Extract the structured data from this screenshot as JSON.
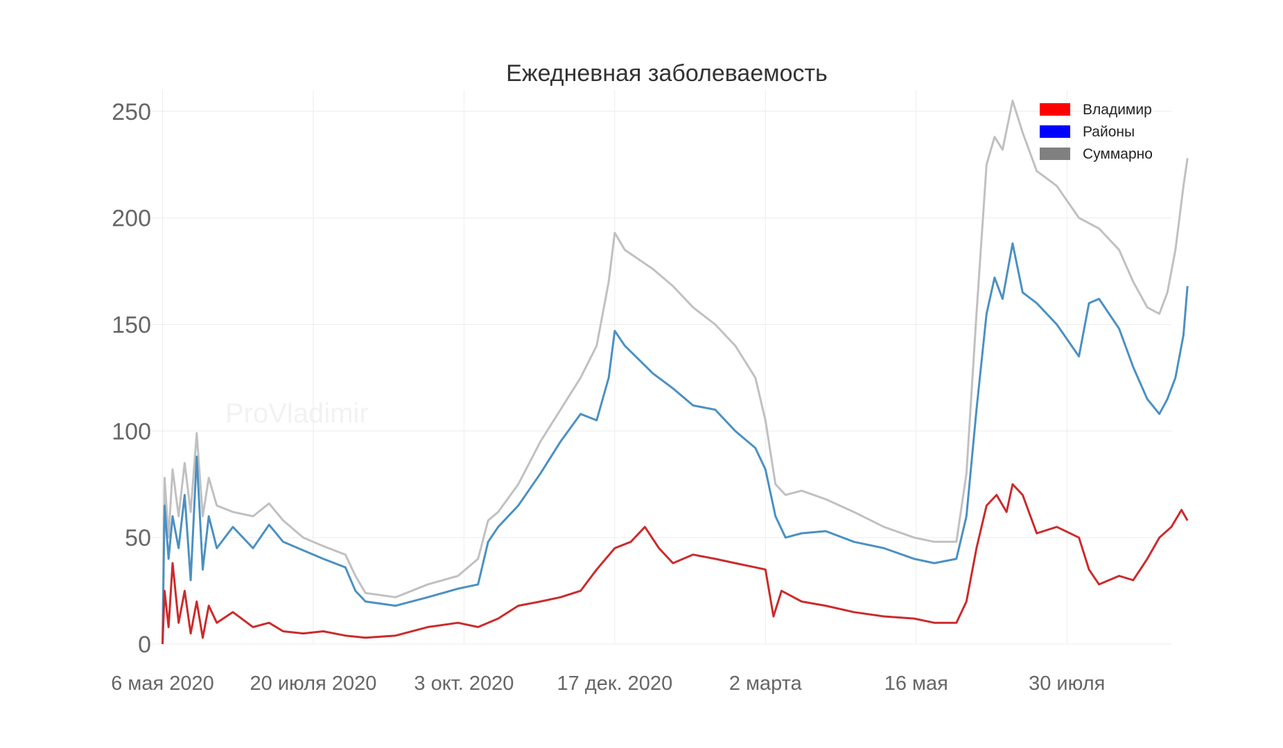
{
  "chart_data": {
    "type": "line",
    "title": "Ежедневная заболеваемость",
    "watermark": "ProVladimir",
    "xlabel": "",
    "ylabel": "",
    "ylim": [
      0,
      260
    ],
    "yticks": [
      0,
      50,
      100,
      150,
      200,
      250
    ],
    "xlim": [
      "2020-05-01",
      "2021-09-20"
    ],
    "xticks": [
      {
        "date": "2020-05-06",
        "label": "6 мая 2020"
      },
      {
        "date": "2020-07-20",
        "label": "20 июля 2020"
      },
      {
        "date": "2020-10-03",
        "label": "3 окт. 2020"
      },
      {
        "date": "2020-12-17",
        "label": "17 дек. 2020"
      },
      {
        "date": "2021-03-02",
        "label": "2 марта"
      },
      {
        "date": "2021-05-16",
        "label": "16 мая"
      },
      {
        "date": "2021-07-30",
        "label": "30 июля"
      }
    ],
    "grid": true,
    "legend_position": "top-right",
    "legend": [
      {
        "name": "Владимир",
        "color": "#ff0000"
      },
      {
        "name": "Районы",
        "color": "#0000ff"
      },
      {
        "name": "Суммарно",
        "color": "#808080"
      }
    ],
    "series": [
      {
        "name": "Суммарно",
        "color": "#c0c0c0",
        "points": [
          [
            "2020-05-06",
            0
          ],
          [
            "2020-05-07",
            78
          ],
          [
            "2020-05-09",
            50
          ],
          [
            "2020-05-11",
            82
          ],
          [
            "2020-05-14",
            60
          ],
          [
            "2020-05-17",
            85
          ],
          [
            "2020-05-20",
            62
          ],
          [
            "2020-05-23",
            99
          ],
          [
            "2020-05-26",
            60
          ],
          [
            "2020-05-29",
            78
          ],
          [
            "2020-06-02",
            65
          ],
          [
            "2020-06-10",
            62
          ],
          [
            "2020-06-20",
            60
          ],
          [
            "2020-06-28",
            66
          ],
          [
            "2020-07-05",
            58
          ],
          [
            "2020-07-15",
            50
          ],
          [
            "2020-07-25",
            46
          ],
          [
            "2020-08-05",
            42
          ],
          [
            "2020-08-10",
            32
          ],
          [
            "2020-08-15",
            24
          ],
          [
            "2020-08-30",
            22
          ],
          [
            "2020-09-15",
            28
          ],
          [
            "2020-09-30",
            32
          ],
          [
            "2020-10-10",
            40
          ],
          [
            "2020-10-15",
            58
          ],
          [
            "2020-10-20",
            62
          ],
          [
            "2020-10-30",
            75
          ],
          [
            "2020-11-10",
            95
          ],
          [
            "2020-11-20",
            110
          ],
          [
            "2020-11-30",
            125
          ],
          [
            "2020-12-08",
            140
          ],
          [
            "2020-12-14",
            170
          ],
          [
            "2020-12-17",
            193
          ],
          [
            "2020-12-22",
            185
          ],
          [
            "2021-01-05",
            176
          ],
          [
            "2021-01-15",
            168
          ],
          [
            "2021-01-25",
            158
          ],
          [
            "2021-02-05",
            150
          ],
          [
            "2021-02-15",
            140
          ],
          [
            "2021-02-25",
            125
          ],
          [
            "2021-03-02",
            105
          ],
          [
            "2021-03-07",
            75
          ],
          [
            "2021-03-12",
            70
          ],
          [
            "2021-03-20",
            72
          ],
          [
            "2021-04-01",
            68
          ],
          [
            "2021-04-15",
            62
          ],
          [
            "2021-04-30",
            55
          ],
          [
            "2021-05-15",
            50
          ],
          [
            "2021-05-25",
            48
          ],
          [
            "2021-06-05",
            48
          ],
          [
            "2021-06-10",
            80
          ],
          [
            "2021-06-15",
            155
          ],
          [
            "2021-06-20",
            225
          ],
          [
            "2021-06-24",
            238
          ],
          [
            "2021-06-28",
            232
          ],
          [
            "2021-07-03",
            255
          ],
          [
            "2021-07-08",
            240
          ],
          [
            "2021-07-15",
            222
          ],
          [
            "2021-07-25",
            215
          ],
          [
            "2021-08-05",
            200
          ],
          [
            "2021-08-15",
            195
          ],
          [
            "2021-08-25",
            185
          ],
          [
            "2021-09-01",
            170
          ],
          [
            "2021-09-08",
            158
          ],
          [
            "2021-09-14",
            155
          ],
          [
            "2021-09-18",
            165
          ],
          [
            "2021-09-22",
            185
          ],
          [
            "2021-09-26",
            215
          ],
          [
            "2021-09-28",
            228
          ]
        ]
      },
      {
        "name": "Районы",
        "color": "#4a90c2",
        "points": [
          [
            "2020-05-06",
            0
          ],
          [
            "2020-05-07",
            65
          ],
          [
            "2020-05-09",
            40
          ],
          [
            "2020-05-11",
            60
          ],
          [
            "2020-05-14",
            45
          ],
          [
            "2020-05-17",
            70
          ],
          [
            "2020-05-20",
            30
          ],
          [
            "2020-05-23",
            88
          ],
          [
            "2020-05-26",
            35
          ],
          [
            "2020-05-29",
            60
          ],
          [
            "2020-06-02",
            45
          ],
          [
            "2020-06-10",
            55
          ],
          [
            "2020-06-20",
            45
          ],
          [
            "2020-06-28",
            56
          ],
          [
            "2020-07-05",
            48
          ],
          [
            "2020-07-15",
            44
          ],
          [
            "2020-07-25",
            40
          ],
          [
            "2020-08-05",
            36
          ],
          [
            "2020-08-10",
            25
          ],
          [
            "2020-08-15",
            20
          ],
          [
            "2020-08-30",
            18
          ],
          [
            "2020-09-15",
            22
          ],
          [
            "2020-09-30",
            26
          ],
          [
            "2020-10-10",
            28
          ],
          [
            "2020-10-15",
            48
          ],
          [
            "2020-10-20",
            55
          ],
          [
            "2020-10-30",
            65
          ],
          [
            "2020-11-10",
            80
          ],
          [
            "2020-11-20",
            95
          ],
          [
            "2020-11-30",
            108
          ],
          [
            "2020-12-08",
            105
          ],
          [
            "2020-12-14",
            125
          ],
          [
            "2020-12-17",
            147
          ],
          [
            "2020-12-22",
            140
          ],
          [
            "2021-01-05",
            127
          ],
          [
            "2021-01-15",
            120
          ],
          [
            "2021-01-25",
            112
          ],
          [
            "2021-02-05",
            110
          ],
          [
            "2021-02-15",
            100
          ],
          [
            "2021-02-25",
            92
          ],
          [
            "2021-03-02",
            82
          ],
          [
            "2021-03-07",
            60
          ],
          [
            "2021-03-12",
            50
          ],
          [
            "2021-03-20",
            52
          ],
          [
            "2021-04-01",
            53
          ],
          [
            "2021-04-15",
            48
          ],
          [
            "2021-04-30",
            45
          ],
          [
            "2021-05-15",
            40
          ],
          [
            "2021-05-25",
            38
          ],
          [
            "2021-06-05",
            40
          ],
          [
            "2021-06-10",
            60
          ],
          [
            "2021-06-15",
            110
          ],
          [
            "2021-06-20",
            155
          ],
          [
            "2021-06-24",
            172
          ],
          [
            "2021-06-28",
            162
          ],
          [
            "2021-07-03",
            188
          ],
          [
            "2021-07-08",
            165
          ],
          [
            "2021-07-15",
            160
          ],
          [
            "2021-07-25",
            150
          ],
          [
            "2021-08-05",
            135
          ],
          [
            "2021-08-10",
            160
          ],
          [
            "2021-08-15",
            162
          ],
          [
            "2021-08-25",
            148
          ],
          [
            "2021-09-01",
            130
          ],
          [
            "2021-09-08",
            115
          ],
          [
            "2021-09-14",
            108
          ],
          [
            "2021-09-18",
            115
          ],
          [
            "2021-09-22",
            125
          ],
          [
            "2021-09-26",
            145
          ],
          [
            "2021-09-28",
            168
          ]
        ]
      },
      {
        "name": "Владимир",
        "color": "#cc2a2a",
        "points": [
          [
            "2020-05-06",
            0
          ],
          [
            "2020-05-07",
            25
          ],
          [
            "2020-05-09",
            8
          ],
          [
            "2020-05-11",
            38
          ],
          [
            "2020-05-14",
            10
          ],
          [
            "2020-05-17",
            25
          ],
          [
            "2020-05-20",
            5
          ],
          [
            "2020-05-23",
            20
          ],
          [
            "2020-05-26",
            3
          ],
          [
            "2020-05-29",
            18
          ],
          [
            "2020-06-02",
            10
          ],
          [
            "2020-06-10",
            15
          ],
          [
            "2020-06-20",
            8
          ],
          [
            "2020-06-28",
            10
          ],
          [
            "2020-07-05",
            6
          ],
          [
            "2020-07-15",
            5
          ],
          [
            "2020-07-25",
            6
          ],
          [
            "2020-08-05",
            4
          ],
          [
            "2020-08-15",
            3
          ],
          [
            "2020-08-30",
            4
          ],
          [
            "2020-09-15",
            8
          ],
          [
            "2020-09-30",
            10
          ],
          [
            "2020-10-10",
            8
          ],
          [
            "2020-10-20",
            12
          ],
          [
            "2020-10-30",
            18
          ],
          [
            "2020-11-10",
            20
          ],
          [
            "2020-11-20",
            22
          ],
          [
            "2020-11-30",
            25
          ],
          [
            "2020-12-08",
            35
          ],
          [
            "2020-12-17",
            45
          ],
          [
            "2020-12-25",
            48
          ],
          [
            "2021-01-01",
            55
          ],
          [
            "2021-01-08",
            45
          ],
          [
            "2021-01-15",
            38
          ],
          [
            "2021-01-25",
            42
          ],
          [
            "2021-02-05",
            40
          ],
          [
            "2021-02-15",
            38
          ],
          [
            "2021-02-25",
            36
          ],
          [
            "2021-03-02",
            35
          ],
          [
            "2021-03-06",
            13
          ],
          [
            "2021-03-10",
            25
          ],
          [
            "2021-03-20",
            20
          ],
          [
            "2021-04-01",
            18
          ],
          [
            "2021-04-15",
            15
          ],
          [
            "2021-04-30",
            13
          ],
          [
            "2021-05-15",
            12
          ],
          [
            "2021-05-25",
            10
          ],
          [
            "2021-06-05",
            10
          ],
          [
            "2021-06-10",
            20
          ],
          [
            "2021-06-15",
            45
          ],
          [
            "2021-06-20",
            65
          ],
          [
            "2021-06-25",
            70
          ],
          [
            "2021-06-30",
            62
          ],
          [
            "2021-07-03",
            75
          ],
          [
            "2021-07-08",
            70
          ],
          [
            "2021-07-15",
            52
          ],
          [
            "2021-07-25",
            55
          ],
          [
            "2021-08-05",
            50
          ],
          [
            "2021-08-10",
            35
          ],
          [
            "2021-08-15",
            28
          ],
          [
            "2021-08-25",
            32
          ],
          [
            "2021-09-01",
            30
          ],
          [
            "2021-09-08",
            40
          ],
          [
            "2021-09-14",
            50
          ],
          [
            "2021-09-20",
            55
          ],
          [
            "2021-09-25",
            63
          ],
          [
            "2021-09-28",
            58
          ]
        ]
      }
    ]
  }
}
